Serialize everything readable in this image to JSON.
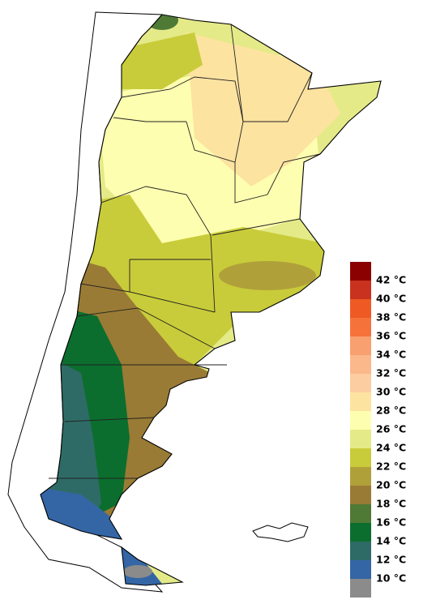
{
  "legend": {
    "labels": [
      "42 °C",
      "40 °C",
      "38 °C",
      "36 °C",
      "34 °C",
      "32 °C",
      "30 °C",
      "28 °C",
      "26 °C",
      "24 °C",
      "22 °C",
      "20 °C",
      "18 °C",
      "16 °C",
      "14 °C",
      "12 °C",
      "10 °C"
    ],
    "colors": [
      "#8b0000",
      "#c8321e",
      "#ef5a24",
      "#f5733a",
      "#f9a070",
      "#fbb88a",
      "#fccda0",
      "#fde3a0",
      "#fefeb0",
      "#e4ea88",
      "#c9cc3a",
      "#b0a03a",
      "#9a7b35",
      "#4f7a36",
      "#0b6e2e",
      "#2f6b66",
      "#3466a6",
      "#8b8b8b"
    ]
  }
}
